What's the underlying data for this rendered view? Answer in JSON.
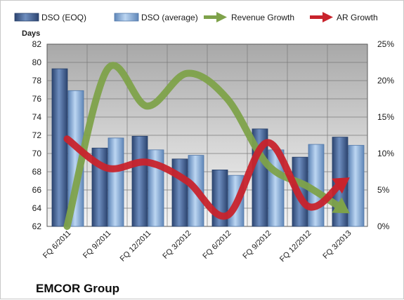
{
  "chart_data": {
    "type": "bar",
    "title": "",
    "brand_label": "EMCOR Group",
    "categories": [
      "FQ 6/2011",
      "FQ 9/2011",
      "FQ 12/2011",
      "FQ 3/2012",
      "FQ 6/2012",
      "FQ 9/2012",
      "FQ 12/2012",
      "FQ 3/2013"
    ],
    "ylabel": "Days",
    "ylim": [
      62,
      82
    ],
    "yticks": [
      62,
      64,
      66,
      68,
      70,
      72,
      74,
      76,
      78,
      80,
      82
    ],
    "y2lim": [
      0,
      25
    ],
    "y2ticks": [
      "0%",
      "5%",
      "10%",
      "15%",
      "20%",
      "25%"
    ],
    "grid": true,
    "legend_position": "top",
    "series": [
      {
        "name": "DSO (EOQ)",
        "kind": "bar",
        "axis": "left",
        "color": "#4a6a9c",
        "values": [
          79.3,
          70.6,
          71.9,
          69.4,
          68.2,
          72.7,
          69.6,
          71.8
        ]
      },
      {
        "name": "DSO (average)",
        "kind": "bar",
        "axis": "left",
        "color": "#8cb4e0",
        "values": [
          76.9,
          71.7,
          70.4,
          69.8,
          67.6,
          70.4,
          71.0,
          70.9
        ]
      },
      {
        "name": "Revenue Growth",
        "kind": "line",
        "axis": "right",
        "unit": "%",
        "color": "#7ea24a",
        "values": [
          0.0,
          21.5,
          16.5,
          21.0,
          17.5,
          8.5,
          5.5,
          2.0
        ]
      },
      {
        "name": "AR Growth",
        "kind": "line",
        "axis": "right",
        "unit": "%",
        "color": "#c8232c",
        "values": [
          12.0,
          8.0,
          8.8,
          6.2,
          1.5,
          11.5,
          2.8,
          6.5
        ]
      }
    ]
  }
}
